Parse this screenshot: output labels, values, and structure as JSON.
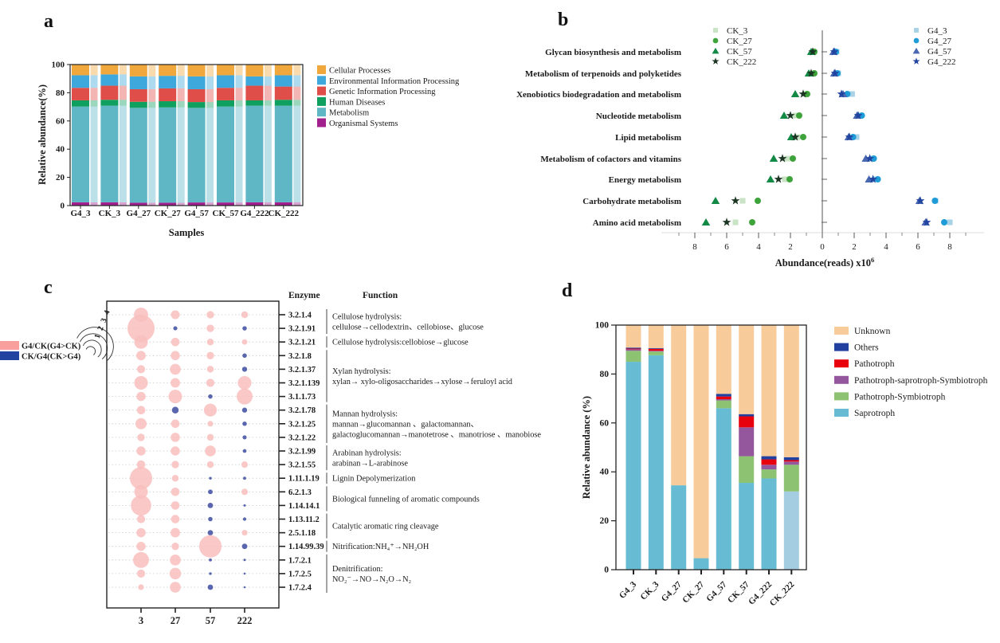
{
  "chart_data": [
    {
      "id": "a",
      "panel_label": "a",
      "type": "bar",
      "xlabel": "Samples",
      "ylabel": "Relative abundance(%)",
      "ylim": [
        0,
        100
      ],
      "yticks": [
        0,
        20,
        40,
        60,
        80,
        100
      ],
      "categories": [
        "G4_3",
        "CK_3",
        "G4_27",
        "CK_27",
        "G4_57",
        "CK_57",
        "G4_222",
        "CK_222"
      ],
      "series": [
        {
          "name": "Organismal Systems",
          "color": "#A2208E",
          "values": [
            2.3,
            2.3,
            2.0,
            2.0,
            2.2,
            2.2,
            2.3,
            2.3
          ]
        },
        {
          "name": "Metabolism",
          "color": "#5FB6C5",
          "values": [
            67.9,
            68.5,
            67.3,
            67.6,
            67.1,
            68.0,
            68.5,
            68.5
          ]
        },
        {
          "name": "Human Diseases",
          "color": "#0FA060",
          "values": [
            4.4,
            4.2,
            4.3,
            4.4,
            4.1,
            4.4,
            3.8,
            4.2
          ]
        },
        {
          "name": "Genetic Information Processing",
          "color": "#E04E49",
          "values": [
            8.9,
            10.0,
            8.9,
            9.1,
            9.1,
            8.9,
            10.4,
            9.4
          ]
        },
        {
          "name": "Environmental Information Processing",
          "color": "#3EA8DC",
          "values": [
            8.9,
            8.0,
            9.1,
            8.9,
            9.1,
            8.9,
            6.6,
            8.0
          ]
        },
        {
          "name": "Cellular Processes",
          "color": "#F0A73C",
          "values": [
            7.6,
            7.0,
            8.4,
            8.0,
            8.4,
            7.6,
            8.4,
            7.6
          ]
        }
      ],
      "legend_order": [
        "Cellular Processes",
        "Environmental Information Processing",
        "Genetic Information Processing",
        "Human Diseases",
        "Metabolism",
        "Organismal Systems"
      ]
    },
    {
      "id": "b",
      "panel_label": "b",
      "type": "scatter",
      "xlabel": "Abundance(reads) x10",
      "xlabel_sup": "6",
      "xtick_labels": [
        "8",
        "6",
        "4",
        "2",
        "0",
        "2",
        "4",
        "6",
        "8"
      ],
      "categories": [
        "Glycan biosynthesis and metabolism",
        "Metabolism of terpenoids and polyketides",
        "Xenobiotics biodegradation and metabolism",
        "Nucleotide metabolism",
        "Lipid metabolism",
        "Metabolism of cofactors and vitamins",
        "Energy metabolism",
        "Carbohydrate metabolism",
        "Amino acid metabolism"
      ],
      "series": [
        {
          "name": "CK_3",
          "side": "left",
          "marker": "square",
          "color": "#C9E3C5",
          "values": [
            0.55,
            0.6,
            1.1,
            1.7,
            1.55,
            2.2,
            2.35,
            5.0,
            5.45
          ]
        },
        {
          "name": "CK_27",
          "side": "left",
          "marker": "circle",
          "color": "#3FA33C",
          "values": [
            0.5,
            0.5,
            0.95,
            1.45,
            1.2,
            1.85,
            2.05,
            4.05,
            4.4
          ]
        },
        {
          "name": "CK_57",
          "side": "left",
          "marker": "triangle",
          "color": "#128945",
          "values": [
            0.7,
            0.85,
            1.7,
            2.4,
            1.95,
            3.05,
            3.25,
            6.7,
            7.3
          ]
        },
        {
          "name": "CK_222",
          "side": "left",
          "marker": "star",
          "color": "#1C3523",
          "values": [
            0.6,
            0.7,
            1.2,
            2.0,
            1.7,
            2.5,
            2.75,
            5.45,
            6.0
          ]
        },
        {
          "name": "G4_3",
          "side": "right",
          "marker": "square",
          "color": "#A8D3E7",
          "values": [
            0.9,
            1.0,
            1.87,
            2.3,
            2.15,
            3.1,
            3.3,
            7.1,
            8.0
          ]
        },
        {
          "name": "G4_27",
          "side": "right",
          "marker": "circle",
          "color": "#1F9CD8",
          "values": [
            0.85,
            0.95,
            1.57,
            2.48,
            1.93,
            3.23,
            3.48,
            7.07,
            7.65
          ]
        },
        {
          "name": "G4_57",
          "side": "right",
          "marker": "triangle",
          "color": "#4A67B1",
          "values": [
            0.7,
            0.75,
            1.3,
            2.18,
            1.65,
            2.73,
            2.93,
            6.1,
            6.48
          ]
        },
        {
          "name": "G4_222",
          "side": "right",
          "marker": "star",
          "color": "#20449F",
          "values": [
            0.75,
            0.8,
            1.2,
            2.25,
            1.7,
            2.98,
            3.18,
            6.15,
            6.55
          ]
        }
      ]
    },
    {
      "id": "c",
      "panel_label": "c",
      "type": "bubble",
      "columns": [
        "3",
        "27",
        "57",
        "222"
      ],
      "legend": [
        {
          "label": "G4/CK(G4>CK)",
          "color": "#F99F9E"
        },
        {
          "label": "CK/G4(CK>G4)",
          "color": "#2343A0"
        }
      ],
      "size_legend": [
        "4",
        "3",
        "2",
        "1"
      ],
      "bubble_colors": {
        "p": "#F8BEBD",
        "b": "#4C5AA7"
      },
      "headers": {
        "enzyme": "Enzyme",
        "function": "Function"
      },
      "rows": [
        {
          "enzyme": "3.2.1.4",
          "bubbles": [
            [
              2.1,
              "p"
            ],
            [
              1.3,
              "p"
            ],
            [
              1.1,
              "p"
            ],
            [
              1.0,
              "p"
            ]
          ]
        },
        {
          "enzyme": "3.2.1.91",
          "bubbles": [
            [
              4.0,
              "p"
            ],
            [
              0.6,
              "b"
            ],
            [
              1.1,
              "p"
            ],
            [
              0.65,
              "b"
            ]
          ]
        },
        {
          "enzyme": "3.2.1.21",
          "bubbles": [
            [
              2.0,
              "p"
            ],
            [
              1.25,
              "p"
            ],
            [
              1.0,
              "p"
            ],
            [
              0.8,
              "p"
            ]
          ]
        },
        {
          "enzyme": "3.2.1.8",
          "bubbles": [
            [
              1.4,
              "p"
            ],
            [
              1.35,
              "p"
            ],
            [
              1.1,
              "p"
            ],
            [
              0.65,
              "b"
            ]
          ]
        },
        {
          "enzyme": "3.2.1.37",
          "bubbles": [
            [
              1.2,
              "p"
            ],
            [
              1.6,
              "p"
            ],
            [
              1.0,
              "p"
            ],
            [
              0.75,
              "b"
            ]
          ]
        },
        {
          "enzyme": "3.2.1.139",
          "bubbles": [
            [
              2.0,
              "p"
            ],
            [
              1.4,
              "p"
            ],
            [
              1.2,
              "p"
            ],
            [
              2.0,
              "p"
            ]
          ]
        },
        {
          "enzyme": "3.1.1.73",
          "bubbles": [
            [
              1.35,
              "p"
            ],
            [
              2.0,
              "p"
            ],
            [
              0.65,
              "b"
            ],
            [
              2.35,
              "p"
            ]
          ]
        },
        {
          "enzyme": "3.2.1.78",
          "bubbles": [
            [
              1.25,
              "p"
            ],
            [
              1.0,
              "b"
            ],
            [
              1.9,
              "p"
            ],
            [
              0.75,
              "b"
            ]
          ]
        },
        {
          "enzyme": "3.2.1.25",
          "bubbles": [
            [
              1.65,
              "p"
            ],
            [
              1.25,
              "p"
            ],
            [
              0.85,
              "p"
            ],
            [
              0.65,
              "b"
            ]
          ]
        },
        {
          "enzyme": "3.2.1.22",
          "bubbles": [
            [
              1.1,
              "p"
            ],
            [
              1.35,
              "p"
            ],
            [
              1.0,
              "p"
            ],
            [
              0.6,
              "b"
            ]
          ]
        },
        {
          "enzyme": "3.2.1.99",
          "bubbles": [
            [
              1.35,
              "p"
            ],
            [
              1.35,
              "p"
            ],
            [
              1.6,
              "p"
            ],
            [
              0.55,
              "b"
            ]
          ]
        },
        {
          "enzyme": "3.2.1.55",
          "bubbles": [
            [
              1.25,
              "p"
            ],
            [
              1.1,
              "p"
            ],
            [
              1.0,
              "p"
            ],
            [
              0.95,
              "p"
            ]
          ]
        },
        {
          "enzyme": "1.11.1.19",
          "bubbles": [
            [
              3.3,
              "p"
            ],
            [
              1.0,
              "p"
            ],
            [
              0.4,
              "b"
            ],
            [
              0.45,
              "b"
            ]
          ]
        },
        {
          "enzyme": "6.2.1.3",
          "bubbles": [
            [
              2.0,
              "p"
            ],
            [
              1.25,
              "p"
            ],
            [
              0.7,
              "b"
            ],
            [
              0.95,
              "p"
            ]
          ]
        },
        {
          "enzyme": "1.14.14.1",
          "bubbles": [
            [
              3.0,
              "p"
            ],
            [
              1.25,
              "p"
            ],
            [
              0.8,
              "b"
            ],
            [
              0.35,
              "b"
            ]
          ]
        },
        {
          "enzyme": "1.13.11.2",
          "bubbles": [
            [
              1.2,
              "p"
            ],
            [
              1.25,
              "p"
            ],
            [
              0.65,
              "b"
            ],
            [
              0.5,
              "b"
            ]
          ]
        },
        {
          "enzyme": "2.5.1.18",
          "bubbles": [
            [
              1.35,
              "p"
            ],
            [
              1.4,
              "p"
            ],
            [
              0.8,
              "b"
            ],
            [
              0.85,
              "p"
            ]
          ]
        },
        {
          "enzyme": "1.14.99.39",
          "bubbles": [
            [
              1.35,
              "p"
            ],
            [
              1.1,
              "p"
            ],
            [
              3.3,
              "p"
            ],
            [
              0.8,
              "b"
            ]
          ]
        },
        {
          "enzyme": "1.7.2.1",
          "bubbles": [
            [
              2.35,
              "p"
            ],
            [
              1.6,
              "p"
            ],
            [
              0.45,
              "b"
            ],
            [
              0.35,
              "b"
            ]
          ]
        },
        {
          "enzyme": "1.7.2.5",
          "bubbles": [
            [
              1.2,
              "p"
            ],
            [
              1.7,
              "p"
            ],
            [
              0.4,
              "b"
            ],
            [
              0.3,
              "b"
            ]
          ]
        },
        {
          "enzyme": "1.7.2.4",
          "bubbles": [
            [
              0.85,
              "p"
            ],
            [
              1.6,
              "p"
            ],
            [
              0.8,
              "b"
            ],
            [
              0.3,
              "b"
            ]
          ]
        }
      ],
      "groups": [
        {
          "rows": [
            1,
            2
          ],
          "lines": [
            "Cellulose hydrolysis:",
            "cellulose→cellodextrin、cellobiose、glucose"
          ]
        },
        {
          "rows": [
            3,
            3
          ],
          "lines": [
            "Cellulose hydrolysis:cellobiose→glucose"
          ]
        },
        {
          "rows": [
            4,
            7
          ],
          "lines": [
            "Xylan hydrolysis:",
            "xylan→ xylo-oligosaccharides→xylose→feruloyl acid"
          ]
        },
        {
          "rows": [
            8,
            10
          ],
          "lines": [
            "Mannan hydrolysis:",
            "mannan→glucomannan 、galactomannan、",
            "galactoglucomannan→manotetrose 、manotriose 、manobiose"
          ]
        },
        {
          "rows": [
            11,
            12
          ],
          "lines": [
            "Arabinan hydrolysis:",
            "arabinan→L-arabinose"
          ]
        },
        {
          "rows": [
            13,
            13
          ],
          "lines": [
            "Lignin Depolymerization"
          ]
        },
        {
          "rows": [
            14,
            15
          ],
          "lines": [
            "Biological funneling of aromatic compounds"
          ]
        },
        {
          "rows": [
            16,
            17
          ],
          "lines": [
            "Catalytic aromatic ring  cleavage"
          ]
        },
        {
          "rows": [
            18,
            18
          ],
          "lines": [
            "Nitrification:NH₄⁺→NH₂OH"
          ]
        },
        {
          "rows": [
            19,
            21
          ],
          "lines": [
            "Denitrification:",
            "NO₂⁻→NO→N₂O→N₂"
          ]
        }
      ]
    },
    {
      "id": "d",
      "panel_label": "d",
      "type": "bar",
      "ylabel": "Relative abundance (%)",
      "ylim": [
        0,
        100
      ],
      "yticks": [
        0,
        20,
        40,
        60,
        80,
        100
      ],
      "categories": [
        "G4_3",
        "CK_3",
        "G4_27",
        "CK_27",
        "G4_57",
        "CK_57",
        "G4_222",
        "CK_222"
      ],
      "series": [
        {
          "name": "Saprotroph",
          "color": "#67BCD3",
          "color_overrides": {
            "7": "#A5CDE2"
          },
          "values": [
            85.0,
            87.7,
            34.5,
            4.7,
            66.0,
            35.5,
            37.3,
            32.0
          ]
        },
        {
          "name": "Pathotroph-Symbiotroph",
          "color": "#8CC271",
          "values": [
            4.5,
            1.5,
            0,
            0,
            3.2,
            10.9,
            3.7,
            10.9
          ]
        },
        {
          "name": "Pathotroph-saprotroph-Symbiotroph",
          "color": "#94579E",
          "values": [
            0.6,
            0.3,
            0,
            0,
            0.5,
            11.8,
            1.9,
            1.3
          ]
        },
        {
          "name": "Pathotroph",
          "color": "#E8000D",
          "values": [
            0.3,
            0.8,
            0,
            0,
            1.1,
            4.5,
            2.2,
            0.6
          ]
        },
        {
          "name": "Others",
          "color": "#21409F",
          "values": [
            0.4,
            0.3,
            0,
            0,
            1.1,
            0.9,
            1.3,
            1.2
          ]
        },
        {
          "name": "Unknown",
          "color": "#F8CB9B",
          "values": [
            9.2,
            9.4,
            65.5,
            95.3,
            28.1,
            36.4,
            53.6,
            54.0
          ]
        }
      ],
      "legend_order": [
        "Unknown",
        "Others",
        "Pathotroph",
        "Pathotroph-saprotroph-Symbiotroph",
        "Pathotroph-Symbiotroph",
        "Saprotroph"
      ]
    }
  ]
}
